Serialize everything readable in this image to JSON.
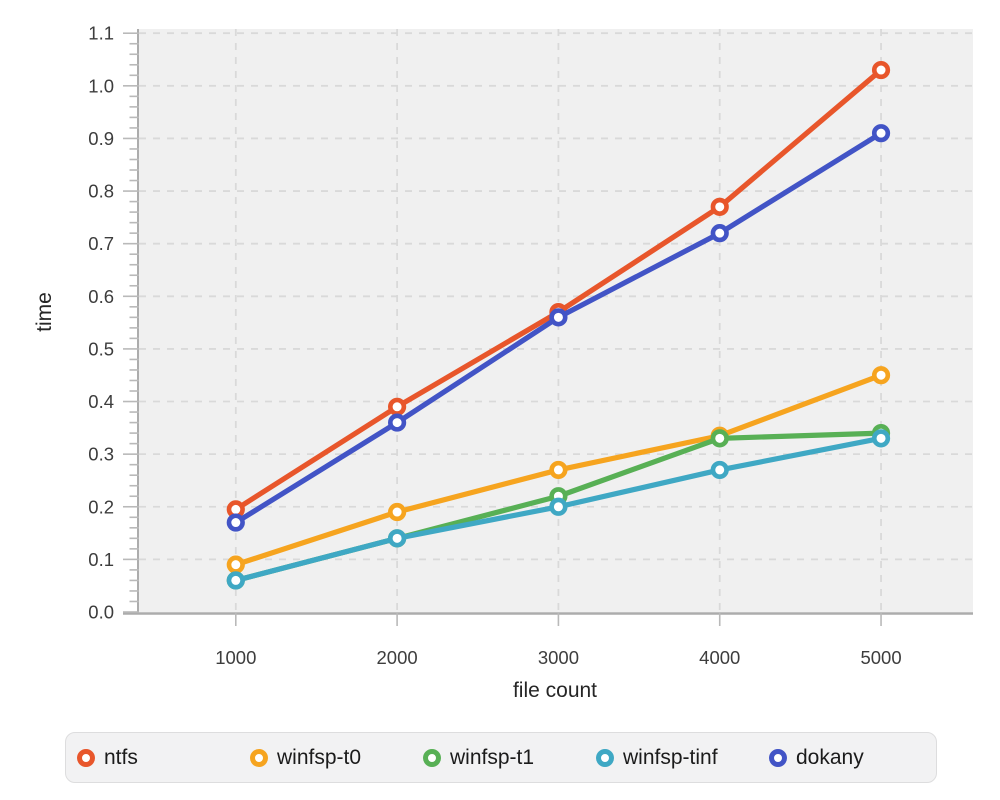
{
  "chart_data": {
    "type": "line",
    "title": "",
    "xlabel": "file count",
    "ylabel": "time",
    "x": [
      1000,
      2000,
      3000,
      4000,
      5000
    ],
    "xtick_labels": [
      "1000",
      "2000",
      "3000",
      "4000",
      "5000"
    ],
    "ytick_values": [
      0,
      0.1,
      0.2,
      0.3,
      0.4,
      0.5,
      0.6,
      0.7,
      0.8,
      0.9,
      1.0,
      1.1
    ],
    "ytick_labels": [
      "0.0",
      "0.1",
      "0.2",
      "0.3",
      "0.4",
      "0.5",
      "0.6",
      "0.7",
      "0.8",
      "0.9",
      "1.0",
      "1.1"
    ],
    "xlim": [
      400,
      5570
    ],
    "ylim": [
      0,
      1.108
    ],
    "y_minor_tick_step": 0.02,
    "grid": "dashed",
    "legend_position": "bottom",
    "marker_style": "open-circle",
    "series": [
      {
        "name": "ntfs",
        "color": "#E8562B",
        "values": [
          0.195,
          0.39,
          0.57,
          0.77,
          1.03
        ]
      },
      {
        "name": "winfsp-t0",
        "color": "#F6A41F",
        "values": [
          0.09,
          0.19,
          0.27,
          0.335,
          0.45
        ]
      },
      {
        "name": "winfsp-t1",
        "color": "#58B055",
        "values": [
          0.06,
          0.14,
          0.22,
          0.33,
          0.34
        ]
      },
      {
        "name": "winfsp-tinf",
        "color": "#3FA8C4",
        "values": [
          0.06,
          0.14,
          0.2,
          0.27,
          0.33
        ]
      },
      {
        "name": "dokany",
        "color": "#4254C6",
        "values": [
          0.17,
          0.36,
          0.56,
          0.72,
          0.91
        ]
      }
    ]
  },
  "style": {
    "figure_bg": "#FFFFFF",
    "plot_bg": "#F0F0F0",
    "grid_color": "#D9D9D9",
    "axis_line_color": "#ACACAC",
    "tick_color": "#B9B9B9",
    "tick_label_color": "#3D3D3D",
    "axis_title_color": "#262626",
    "legend_bg": "#F2F2F3",
    "legend_border": "#DDDDDE",
    "legend_text_color": "#1B1B1B",
    "marker_fill": "#FFFFFF"
  }
}
